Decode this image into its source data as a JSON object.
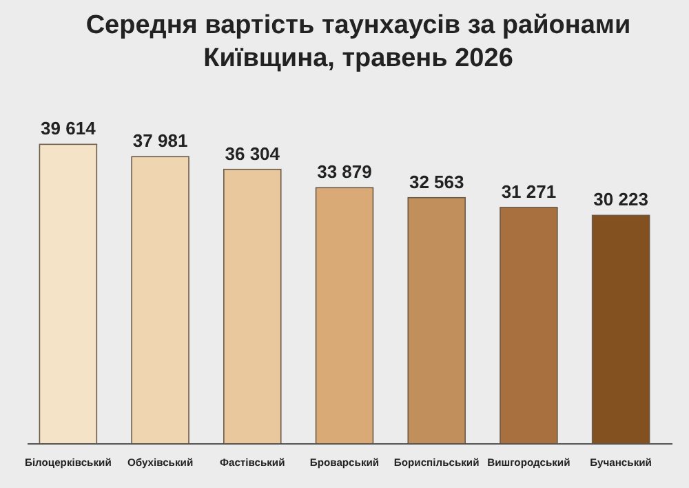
{
  "chart_data": {
    "type": "bar",
    "title": "Середня вартість таунхаусів за районами Київщина, травень 2026",
    "categories": [
      "Білоцерківський",
      "Обухівський",
      "Фастівський",
      "Броварський",
      "Бориспільський",
      "Вишгородський",
      "Бучанський"
    ],
    "values": [
      39614,
      37981,
      36304,
      33879,
      32563,
      31271,
      30223
    ],
    "value_labels": [
      "39 614",
      "37 981",
      "36 304",
      "33 879",
      "32 563",
      "31 271",
      "30 223"
    ],
    "colors": [
      "#f5e3c8",
      "#efd5b0",
      "#e8c89c",
      "#d9aa76",
      "#c08f5c",
      "#a8703f",
      "#83501f"
    ]
  }
}
